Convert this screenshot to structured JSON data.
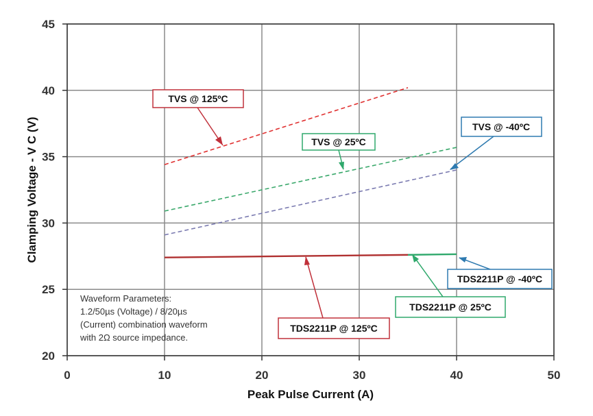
{
  "chart_data": {
    "type": "line",
    "xlabel": "Peak Pulse Current (A)",
    "ylabel": "Clamping Voltage - V C  (V)",
    "xlim": [
      0,
      50
    ],
    "ylim": [
      20,
      45
    ],
    "x_ticks": [
      "0",
      "10",
      "20",
      "30",
      "40",
      "50"
    ],
    "y_ticks": [
      "20",
      "25",
      "30",
      "35",
      "40",
      "45"
    ],
    "grid": true,
    "series": [
      {
        "name": "TVS @ 125ºC",
        "style": "dashed",
        "color": "#e03030",
        "x": [
          10,
          35
        ],
        "y": [
          34.4,
          40.2
        ]
      },
      {
        "name": "TVS @ 25ºC",
        "style": "dashed",
        "color": "#3aa86b",
        "x": [
          10,
          40
        ],
        "y": [
          30.9,
          35.7
        ]
      },
      {
        "name": "TVS @ -40ºC",
        "style": "dashed",
        "color": "#7a7ab0",
        "x": [
          10,
          40
        ],
        "y": [
          29.1,
          34.0
        ]
      },
      {
        "name": "TDS2211P @ 125ºC",
        "style": "solid",
        "color": "#b03030",
        "x": [
          10,
          35
        ],
        "y": [
          27.4,
          27.6
        ]
      },
      {
        "name": "TDS2211P @ 25ºC",
        "style": "solid",
        "color": "#2ea86b",
        "x": [
          35,
          40
        ],
        "y": [
          27.6,
          27.65
        ]
      },
      {
        "name": "TDS2211P @ -40ºC",
        "style": "solid",
        "color": "#2e7ab0",
        "x": [
          40,
          40
        ],
        "y": [
          27.65,
          27.65
        ]
      }
    ],
    "annotations": [
      {
        "text": "TVS @ 125ºC",
        "border": "#c0303a",
        "arrow": "#c0303a"
      },
      {
        "text": "TVS @ 25ºC",
        "border": "#2ea86b",
        "arrow": "#2ea86b"
      },
      {
        "text": "TVS @ -40ºC",
        "border": "#2e7ab0",
        "arrow": "#2e7ab0"
      },
      {
        "text": "TDS2211P @ -40ºC",
        "border": "#2e7ab0",
        "arrow": "#2e7ab0"
      },
      {
        "text": "TDS2211P @ 25ºC",
        "border": "#2ea86b",
        "arrow": "#2ea86b"
      },
      {
        "text": "TDS2211P @ 125ºC",
        "border": "#c0303a",
        "arrow": "#c0303a"
      }
    ],
    "note_lines": [
      "Waveform Parameters:",
      "1.2/50µs (Voltage) / 8/20µs",
      "(Current) combination waveform",
      "with 2Ω source impedance."
    ]
  }
}
